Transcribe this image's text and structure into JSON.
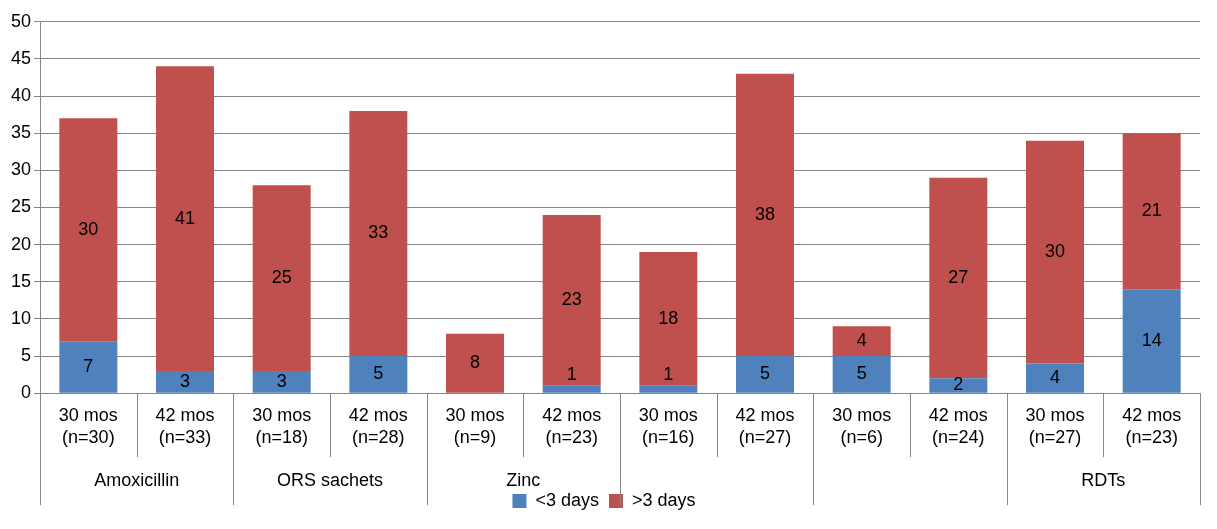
{
  "chart_data": {
    "type": "bar",
    "stacked": true,
    "categories": [
      "30 mos (n=30)",
      "42 mos (n=33)",
      "30 mos (n=18)",
      "42 mos (n=28)",
      "30 mos (n=9)",
      "42 mos (n=23)",
      "30 mos (n=16)",
      "42 mos (n=27)",
      "30 mos (n=6)",
      "42 mos (n=24)",
      "30 mos (n=27)",
      "42 mos (n=23)"
    ],
    "series": [
      {
        "name": "<3 days",
        "color": "#4f81bd",
        "values": [
          7,
          3,
          3,
          5,
          0,
          1,
          1,
          5,
          5,
          2,
          4,
          14
        ],
        "value_labels": [
          "7",
          "3",
          "3",
          "5",
          null,
          "1",
          "1",
          "5",
          "5",
          "2",
          "4",
          "14"
        ]
      },
      {
        "name": ">3 days",
        "color": "#c0504d",
        "values": [
          30,
          41,
          25,
          33,
          8,
          23,
          18,
          38,
          4,
          27,
          30,
          21
        ],
        "value_labels": [
          "30",
          "41",
          "25",
          "33",
          "8",
          "23",
          "18",
          "38",
          "4",
          "27",
          "30",
          "21"
        ]
      }
    ],
    "ylim": [
      0,
      50
    ],
    "yticks": [
      0,
      5,
      10,
      15,
      20,
      25,
      30,
      35,
      40,
      45,
      50
    ],
    "grid": "y",
    "legend": "bottom",
    "annotations": [
      "Amoxicillin",
      "ORS sachets",
      "Zinc",
      null,
      null,
      "RDTs"
    ]
  }
}
